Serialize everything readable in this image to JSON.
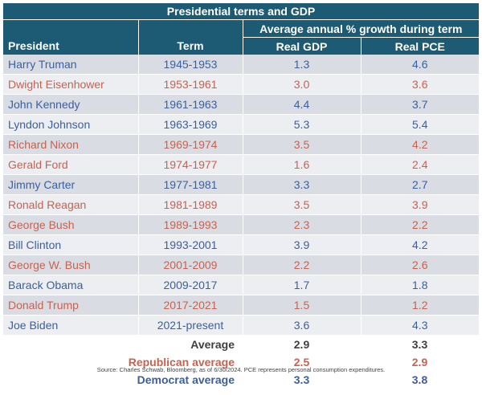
{
  "title": "Presidential terms and GDP",
  "header": {
    "group_label": "Average annual % growth during term",
    "president": "President",
    "term": "Term",
    "real_gdp": "Real GDP",
    "real_pce": "Real PCE"
  },
  "rows": [
    {
      "president": "Harry Truman",
      "term": "1945-1953",
      "gdp": "1.3",
      "pce": "4.6",
      "party": "dem"
    },
    {
      "president": "Dwight Eisenhower",
      "term": "1953-1961",
      "gdp": "3.0",
      "pce": "3.6",
      "party": "rep"
    },
    {
      "president": "John Kennedy",
      "term": "1961-1963",
      "gdp": "4.4",
      "pce": "3.7",
      "party": "dem"
    },
    {
      "president": "Lyndon Johnson",
      "term": "1963-1969",
      "gdp": "5.3",
      "pce": "5.4",
      "party": "dem"
    },
    {
      "president": "Richard Nixon",
      "term": "1969-1974",
      "gdp": "3.5",
      "pce": "4.2",
      "party": "rep"
    },
    {
      "president": "Gerald Ford",
      "term": "1974-1977",
      "gdp": "1.6",
      "pce": "2.4",
      "party": "rep"
    },
    {
      "president": "Jimmy Carter",
      "term": "1977-1981",
      "gdp": "3.3",
      "pce": "2.7",
      "party": "dem"
    },
    {
      "president": "Ronald Reagan",
      "term": "1981-1989",
      "gdp": "3.5",
      "pce": "3.9",
      "party": "rep"
    },
    {
      "president": "George Bush",
      "term": "1989-1993",
      "gdp": "2.3",
      "pce": "2.2",
      "party": "rep"
    },
    {
      "president": "Bill Clinton",
      "term": "1993-2001",
      "gdp": "3.9",
      "pce": "4.2",
      "party": "dem"
    },
    {
      "president": "George W. Bush",
      "term": "2001-2009",
      "gdp": "2.2",
      "pce": "2.6",
      "party": "rep"
    },
    {
      "president": "Barack Obama",
      "term": "2009-2017",
      "gdp": "1.7",
      "pce": "1.8",
      "party": "dem"
    },
    {
      "president": "Donald Trump",
      "term": "2017-2021",
      "gdp": "1.5",
      "pce": "1.2",
      "party": "rep"
    },
    {
      "president": "Joe Biden",
      "term": "2021-present",
      "gdp": "3.6",
      "pce": "4.3",
      "party": "dem"
    }
  ],
  "summary": [
    {
      "label": "Average",
      "gdp": "2.9",
      "pce": "3.3",
      "kind": "avg"
    },
    {
      "label": "Republican average",
      "gdp": "2.5",
      "pce": "2.9",
      "kind": "rep"
    },
    {
      "label": "Democrat average",
      "gdp": "3.3",
      "pce": "3.8",
      "kind": "dem"
    }
  ],
  "source": "Source: Charles Schwab, Bloomberg, as of 6/30/2024. PCE represents personal consumption expenditures.",
  "colors": {
    "header_bg": "#1d5a73",
    "democrat": "#3b5f9e",
    "republican": "#c9614f",
    "row_dark": "#d9dde3",
    "row_light": "#eceef1"
  }
}
